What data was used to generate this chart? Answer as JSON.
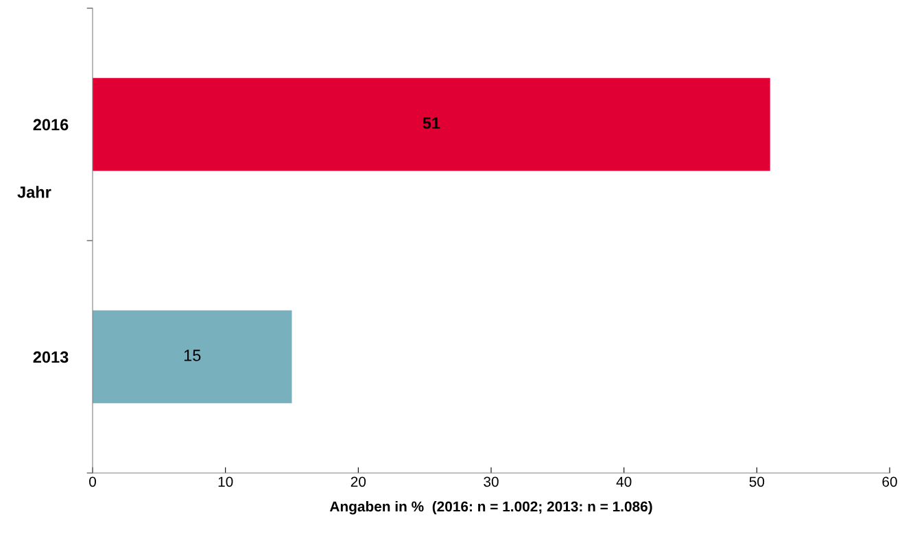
{
  "chart_data": {
    "type": "bar",
    "orientation": "horizontal",
    "categories": [
      "2016",
      "2013"
    ],
    "values": [
      51,
      15
    ],
    "colors": [
      "#e00034",
      "#78b0be"
    ],
    "xlabel": "Angaben in %  (2016: n = 1.002; 2013: n = 1.086)",
    "ylabel": "Jahr",
    "xlim": [
      0,
      60
    ],
    "xticks": [
      0,
      10,
      20,
      30,
      40,
      50,
      60
    ],
    "data_labels": true,
    "grid": false
  }
}
